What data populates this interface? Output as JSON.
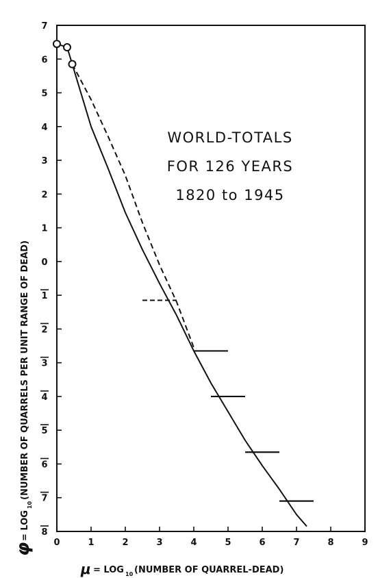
{
  "chart_data": {
    "type": "line",
    "title_lines": [
      "WORLD-TOTALS",
      "FOR 126 YEARS",
      "1820 to 1945"
    ],
    "xlabel": {
      "symbol": "μ",
      "eq": "= LOG",
      "sub": "10",
      "paren": "(NUMBER OF QUARREL-DEAD)"
    },
    "ylabel": {
      "symbol": "φ",
      "eq": "= LOG",
      "sub": "10",
      "paren": "(NUMBER OF QUARRELS PER UNIT RANGE OF DEAD)"
    },
    "xlim": [
      0,
      9
    ],
    "ylim": [
      -8,
      7
    ],
    "x_ticks": [
      {
        "v": 0,
        "label": "0"
      },
      {
        "v": 1,
        "label": "1"
      },
      {
        "v": 2,
        "label": "2"
      },
      {
        "v": 3,
        "label": "3"
      },
      {
        "v": 4,
        "label": "4"
      },
      {
        "v": 5,
        "label": "5"
      },
      {
        "v": 6,
        "label": "6"
      },
      {
        "v": 7,
        "label": "7"
      },
      {
        "v": 8,
        "label": "8"
      },
      {
        "v": 9,
        "label": "9"
      }
    ],
    "y_ticks": [
      {
        "v": 7,
        "label": "7"
      },
      {
        "v": 6,
        "label": "6"
      },
      {
        "v": 5,
        "label": "5"
      },
      {
        "v": 4,
        "label": "4"
      },
      {
        "v": 3,
        "label": "3"
      },
      {
        "v": 2,
        "label": "2"
      },
      {
        "v": 1,
        "label": "1"
      },
      {
        "v": 0,
        "label": "0"
      },
      {
        "v": -1,
        "label": "1"
      },
      {
        "v": -2,
        "label": "2"
      },
      {
        "v": -3,
        "label": "3"
      },
      {
        "v": -4,
        "label": "4"
      },
      {
        "v": -5,
        "label": "5"
      },
      {
        "v": -6,
        "label": "6"
      },
      {
        "v": -7,
        "label": "7"
      },
      {
        "v": -8,
        "label": "8"
      }
    ],
    "points": [
      {
        "x": 0.0,
        "y": 6.45
      },
      {
        "x": 0.3,
        "y": 6.35
      },
      {
        "x": 0.45,
        "y": 5.85
      }
    ],
    "solid_curve": [
      [
        0.0,
        6.45
      ],
      [
        0.3,
        6.35
      ],
      [
        0.45,
        5.85
      ],
      [
        1.0,
        4.0
      ],
      [
        1.5,
        2.75
      ],
      [
        2.0,
        1.45
      ],
      [
        2.5,
        0.35
      ],
      [
        3.0,
        -0.65
      ],
      [
        3.5,
        -1.6
      ],
      [
        4.0,
        -2.65
      ],
      [
        4.5,
        -3.6
      ],
      [
        5.0,
        -4.45
      ],
      [
        5.5,
        -5.3
      ],
      [
        6.0,
        -6.05
      ],
      [
        6.5,
        -6.75
      ],
      [
        7.0,
        -7.5
      ],
      [
        7.3,
        -7.85
      ]
    ],
    "dashed_curve": [
      [
        0.45,
        5.85
      ],
      [
        1.0,
        4.8
      ],
      [
        1.5,
        3.7
      ],
      [
        2.0,
        2.55
      ],
      [
        2.5,
        1.15
      ],
      [
        3.0,
        -0.1
      ],
      [
        3.5,
        -1.2
      ],
      [
        4.0,
        -2.55
      ]
    ],
    "range_bars": [
      {
        "x0": 2.5,
        "x1": 3.5,
        "y": -1.15,
        "style": "dashed"
      },
      {
        "x0": 4.0,
        "x1": 5.0,
        "y": -2.65,
        "style": "solid"
      },
      {
        "x0": 4.5,
        "x1": 5.5,
        "y": -4.0,
        "style": "solid"
      },
      {
        "x0": 5.5,
        "x1": 6.5,
        "y": -5.65,
        "style": "solid"
      },
      {
        "x0": 6.5,
        "x1": 7.5,
        "y": -7.1,
        "style": "solid"
      }
    ]
  }
}
